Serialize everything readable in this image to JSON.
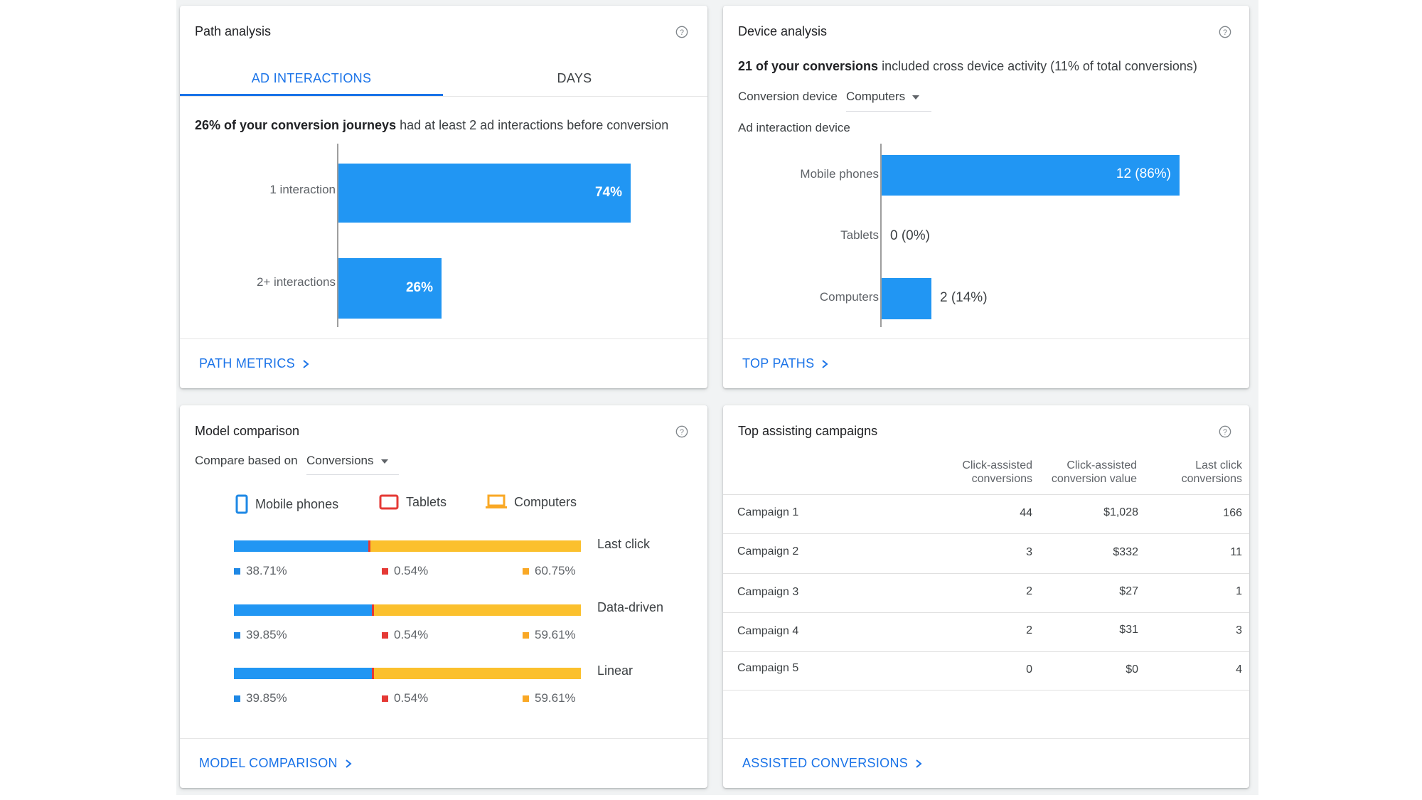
{
  "colors": {
    "blue": "#2196f3",
    "link": "#1a73e8",
    "yellow": "#fbc02d",
    "red": "#e53935",
    "orange": "#f9a825"
  },
  "path_analysis": {
    "title": "Path analysis",
    "help_icon": "help-circle-icon",
    "tabs": [
      "AD INTERACTIONS",
      "DAYS"
    ],
    "active_tab": 0,
    "sentence_bold": "26% of your conversion journeys",
    "sentence_rest": " had at least 2 ad interactions before conversion",
    "footer_link": "PATH METRICS",
    "chart_data": {
      "type": "bar",
      "orientation": "horizontal",
      "categories": [
        "1 interaction",
        "2+ interactions"
      ],
      "values": [
        74,
        26
      ],
      "labels": [
        "74%",
        "26%"
      ],
      "xlim": [
        0,
        100
      ]
    }
  },
  "device_analysis": {
    "title": "Device analysis",
    "help_icon": "help-circle-icon",
    "sentence_bold": "21 of your conversions",
    "sentence_rest": " included cross device activity (11% of total conversions)",
    "conversion_device_label": "Conversion device",
    "conversion_device_value": "Computers",
    "ad_interaction_label": "Ad interaction device",
    "footer_link": "TOP PATHS",
    "chart_data": {
      "type": "bar",
      "orientation": "horizontal",
      "categories": [
        "Mobile phones",
        "Tablets",
        "Computers"
      ],
      "values": [
        12,
        0,
        2
      ],
      "labels": [
        "12 (86%)",
        "0 (0%)",
        "2 (14%)"
      ],
      "xlim": [
        0,
        14
      ]
    }
  },
  "model_comparison": {
    "title": "Model comparison",
    "help_icon": "help-circle-icon",
    "compare_label": "Compare based on",
    "compare_value": "Conversions",
    "legend": [
      {
        "name": "Mobile phones",
        "icon": "mobile-phone-icon",
        "color": "#1e88e5"
      },
      {
        "name": "Tablets",
        "icon": "tablet-icon",
        "color": "#e53935"
      },
      {
        "name": "Computers",
        "icon": "laptop-icon",
        "color": "#f9a825"
      }
    ],
    "footer_link": "MODEL COMPARISON",
    "chart_data": {
      "type": "bar",
      "stacked": true,
      "orientation": "horizontal",
      "categories": [
        "Last click",
        "Data-driven",
        "Linear"
      ],
      "series": [
        {
          "name": "Mobile phones",
          "values": [
            38.71,
            39.85,
            39.85
          ],
          "labels": [
            "38.71%",
            "39.85%",
            "39.85%"
          ]
        },
        {
          "name": "Tablets",
          "values": [
            0.54,
            0.54,
            0.54
          ],
          "labels": [
            "0.54%",
            "0.54%",
            "0.54%"
          ]
        },
        {
          "name": "Computers",
          "values": [
            60.75,
            59.61,
            59.61
          ],
          "labels": [
            "60.75%",
            "59.61%",
            "59.61%"
          ]
        }
      ]
    }
  },
  "top_campaigns": {
    "title": "Top assisting campaigns",
    "help_icon": "help-circle-icon",
    "columns": [
      {
        "line1": "Click-assisted",
        "line2": "conversions"
      },
      {
        "line1": "Click-assisted",
        "line2": "conversion value"
      },
      {
        "line1": "Last click",
        "line2": "conversions"
      }
    ],
    "rows": [
      {
        "name": "Campaign 1",
        "cac": "44",
        "value": "$1,028",
        "last": "166"
      },
      {
        "name": "Campaign 2",
        "cac": "3",
        "value": "$332",
        "last": "11"
      },
      {
        "name": "Campaign 3",
        "cac": "2",
        "value": "$27",
        "last": "1"
      },
      {
        "name": "Campaign 4",
        "cac": "2",
        "value": "$31",
        "last": "3"
      },
      {
        "name": "Campaign 5",
        "cac": "0",
        "value": "$0",
        "last": "4"
      }
    ],
    "footer_link": "ASSISTED CONVERSIONS"
  }
}
